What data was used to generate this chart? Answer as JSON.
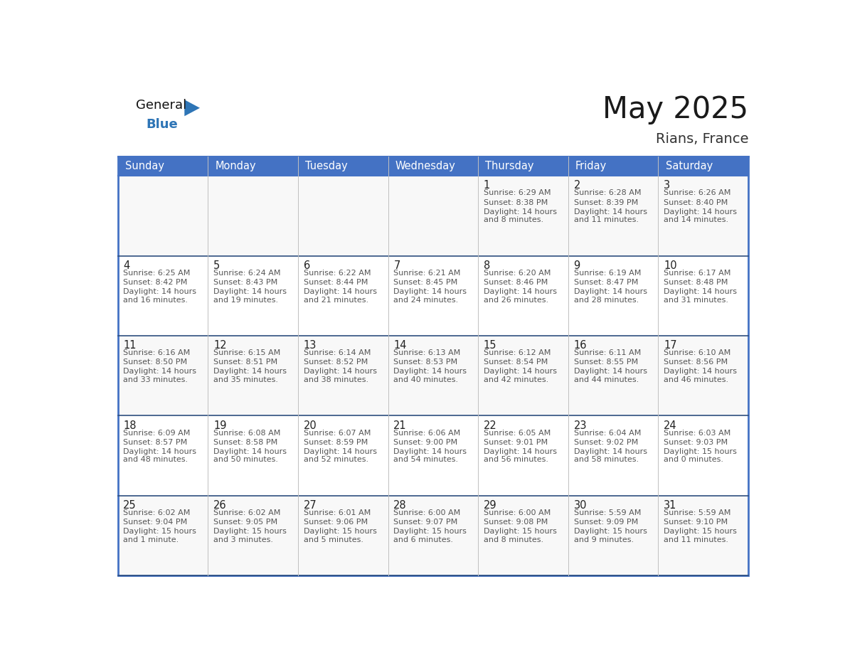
{
  "title": "May 2025",
  "subtitle": "Rians, France",
  "header_bg": "#4472C4",
  "header_text_color": "#FFFFFF",
  "row_separator_color": "#2F4F7F",
  "col_separator_color": "#C0C0C0",
  "outer_border_color": "#4472C4",
  "day_names": [
    "Sunday",
    "Monday",
    "Tuesday",
    "Wednesday",
    "Thursday",
    "Friday",
    "Saturday"
  ],
  "title_color": "#1a1a1a",
  "subtitle_color": "#333333",
  "day_number_color": "#222222",
  "cell_text_color": "#555555",
  "general_blue_color": "#2E75B6",
  "general_text_color": "#111111",
  "logo_triangle_color": "#2E75B6",
  "row_bg_colors": [
    "#F8F8F8",
    "#FFFFFF",
    "#F8F8F8",
    "#FFFFFF",
    "#F8F8F8"
  ],
  "weeks": [
    [
      {
        "day": "",
        "sunrise": "",
        "sunset": "",
        "daylight": ""
      },
      {
        "day": "",
        "sunrise": "",
        "sunset": "",
        "daylight": ""
      },
      {
        "day": "",
        "sunrise": "",
        "sunset": "",
        "daylight": ""
      },
      {
        "day": "",
        "sunrise": "",
        "sunset": "",
        "daylight": ""
      },
      {
        "day": "1",
        "sunrise": "6:29 AM",
        "sunset": "8:38 PM",
        "daylight_line1": "Daylight: 14 hours",
        "daylight_line2": "and 8 minutes."
      },
      {
        "day": "2",
        "sunrise": "6:28 AM",
        "sunset": "8:39 PM",
        "daylight_line1": "Daylight: 14 hours",
        "daylight_line2": "and 11 minutes."
      },
      {
        "day": "3",
        "sunrise": "6:26 AM",
        "sunset": "8:40 PM",
        "daylight_line1": "Daylight: 14 hours",
        "daylight_line2": "and 14 minutes."
      }
    ],
    [
      {
        "day": "4",
        "sunrise": "6:25 AM",
        "sunset": "8:42 PM",
        "daylight_line1": "Daylight: 14 hours",
        "daylight_line2": "and 16 minutes."
      },
      {
        "day": "5",
        "sunrise": "6:24 AM",
        "sunset": "8:43 PM",
        "daylight_line1": "Daylight: 14 hours",
        "daylight_line2": "and 19 minutes."
      },
      {
        "day": "6",
        "sunrise": "6:22 AM",
        "sunset": "8:44 PM",
        "daylight_line1": "Daylight: 14 hours",
        "daylight_line2": "and 21 minutes."
      },
      {
        "day": "7",
        "sunrise": "6:21 AM",
        "sunset": "8:45 PM",
        "daylight_line1": "Daylight: 14 hours",
        "daylight_line2": "and 24 minutes."
      },
      {
        "day": "8",
        "sunrise": "6:20 AM",
        "sunset": "8:46 PM",
        "daylight_line1": "Daylight: 14 hours",
        "daylight_line2": "and 26 minutes."
      },
      {
        "day": "9",
        "sunrise": "6:19 AM",
        "sunset": "8:47 PM",
        "daylight_line1": "Daylight: 14 hours",
        "daylight_line2": "and 28 minutes."
      },
      {
        "day": "10",
        "sunrise": "6:17 AM",
        "sunset": "8:48 PM",
        "daylight_line1": "Daylight: 14 hours",
        "daylight_line2": "and 31 minutes."
      }
    ],
    [
      {
        "day": "11",
        "sunrise": "6:16 AM",
        "sunset": "8:50 PM",
        "daylight_line1": "Daylight: 14 hours",
        "daylight_line2": "and 33 minutes."
      },
      {
        "day": "12",
        "sunrise": "6:15 AM",
        "sunset": "8:51 PM",
        "daylight_line1": "Daylight: 14 hours",
        "daylight_line2": "and 35 minutes."
      },
      {
        "day": "13",
        "sunrise": "6:14 AM",
        "sunset": "8:52 PM",
        "daylight_line1": "Daylight: 14 hours",
        "daylight_line2": "and 38 minutes."
      },
      {
        "day": "14",
        "sunrise": "6:13 AM",
        "sunset": "8:53 PM",
        "daylight_line1": "Daylight: 14 hours",
        "daylight_line2": "and 40 minutes."
      },
      {
        "day": "15",
        "sunrise": "6:12 AM",
        "sunset": "8:54 PM",
        "daylight_line1": "Daylight: 14 hours",
        "daylight_line2": "and 42 minutes."
      },
      {
        "day": "16",
        "sunrise": "6:11 AM",
        "sunset": "8:55 PM",
        "daylight_line1": "Daylight: 14 hours",
        "daylight_line2": "and 44 minutes."
      },
      {
        "day": "17",
        "sunrise": "6:10 AM",
        "sunset": "8:56 PM",
        "daylight_line1": "Daylight: 14 hours",
        "daylight_line2": "and 46 minutes."
      }
    ],
    [
      {
        "day": "18",
        "sunrise": "6:09 AM",
        "sunset": "8:57 PM",
        "daylight_line1": "Daylight: 14 hours",
        "daylight_line2": "and 48 minutes."
      },
      {
        "day": "19",
        "sunrise": "6:08 AM",
        "sunset": "8:58 PM",
        "daylight_line1": "Daylight: 14 hours",
        "daylight_line2": "and 50 minutes."
      },
      {
        "day": "20",
        "sunrise": "6:07 AM",
        "sunset": "8:59 PM",
        "daylight_line1": "Daylight: 14 hours",
        "daylight_line2": "and 52 minutes."
      },
      {
        "day": "21",
        "sunrise": "6:06 AM",
        "sunset": "9:00 PM",
        "daylight_line1": "Daylight: 14 hours",
        "daylight_line2": "and 54 minutes."
      },
      {
        "day": "22",
        "sunrise": "6:05 AM",
        "sunset": "9:01 PM",
        "daylight_line1": "Daylight: 14 hours",
        "daylight_line2": "and 56 minutes."
      },
      {
        "day": "23",
        "sunrise": "6:04 AM",
        "sunset": "9:02 PM",
        "daylight_line1": "Daylight: 14 hours",
        "daylight_line2": "and 58 minutes."
      },
      {
        "day": "24",
        "sunrise": "6:03 AM",
        "sunset": "9:03 PM",
        "daylight_line1": "Daylight: 15 hours",
        "daylight_line2": "and 0 minutes."
      }
    ],
    [
      {
        "day": "25",
        "sunrise": "6:02 AM",
        "sunset": "9:04 PM",
        "daylight_line1": "Daylight: 15 hours",
        "daylight_line2": "and 1 minute."
      },
      {
        "day": "26",
        "sunrise": "6:02 AM",
        "sunset": "9:05 PM",
        "daylight_line1": "Daylight: 15 hours",
        "daylight_line2": "and 3 minutes."
      },
      {
        "day": "27",
        "sunrise": "6:01 AM",
        "sunset": "9:06 PM",
        "daylight_line1": "Daylight: 15 hours",
        "daylight_line2": "and 5 minutes."
      },
      {
        "day": "28",
        "sunrise": "6:00 AM",
        "sunset": "9:07 PM",
        "daylight_line1": "Daylight: 15 hours",
        "daylight_line2": "and 6 minutes."
      },
      {
        "day": "29",
        "sunrise": "6:00 AM",
        "sunset": "9:08 PM",
        "daylight_line1": "Daylight: 15 hours",
        "daylight_line2": "and 8 minutes."
      },
      {
        "day": "30",
        "sunrise": "5:59 AM",
        "sunset": "9:09 PM",
        "daylight_line1": "Daylight: 15 hours",
        "daylight_line2": "and 9 minutes."
      },
      {
        "day": "31",
        "sunrise": "5:59 AM",
        "sunset": "9:10 PM",
        "daylight_line1": "Daylight: 15 hours",
        "daylight_line2": "and 11 minutes."
      }
    ]
  ]
}
